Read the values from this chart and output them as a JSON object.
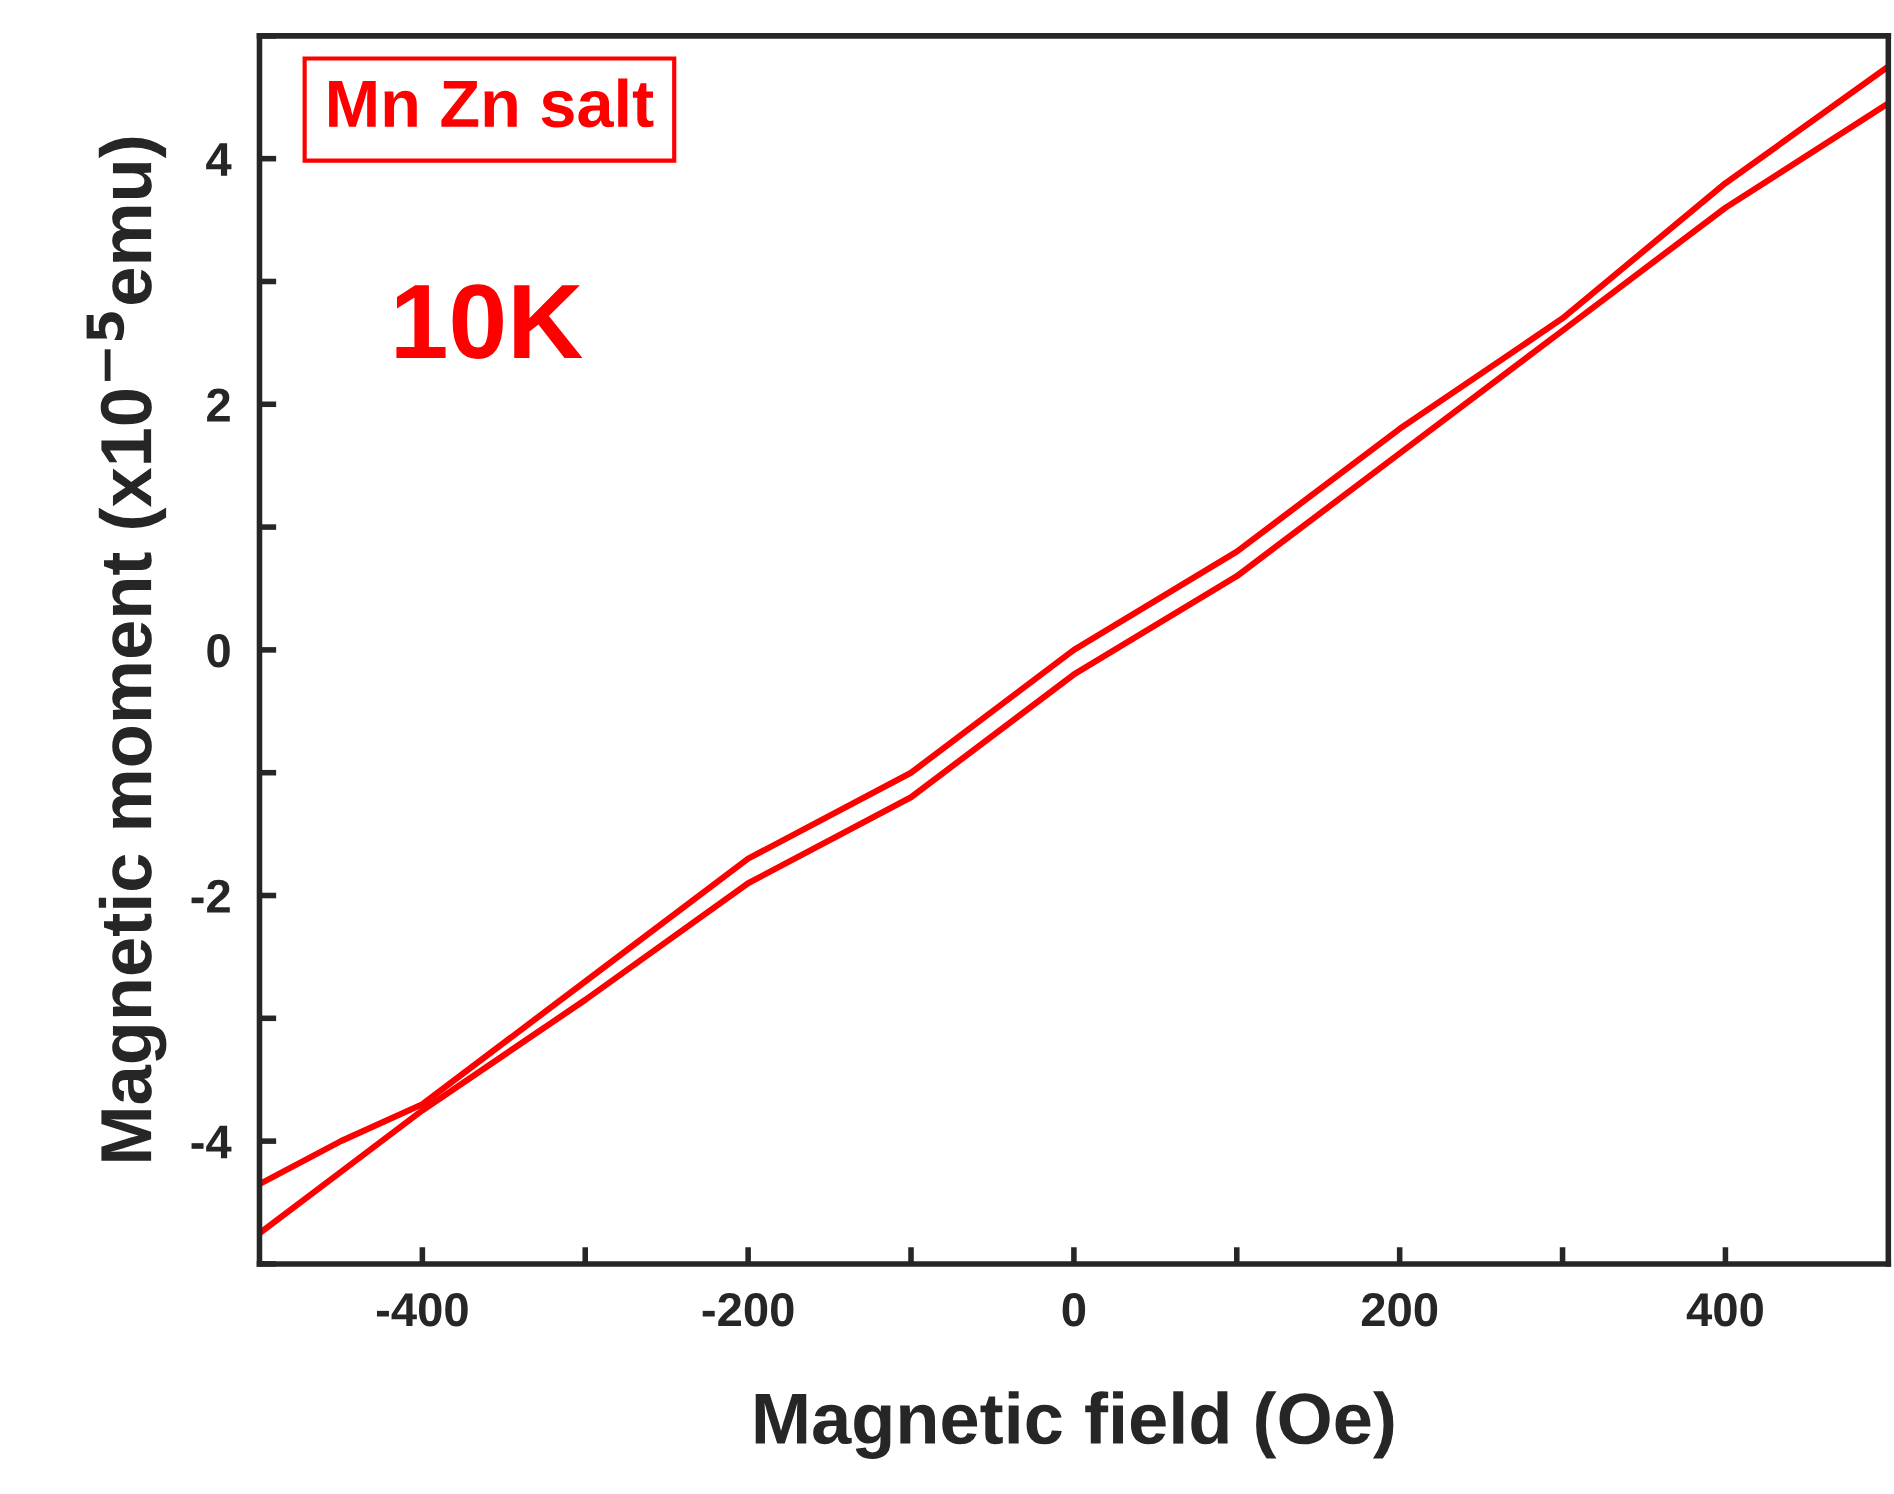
{
  "chart_data": {
    "type": "line",
    "xlabel": "Magnetic field (Oe)",
    "ylabel": "Magnetic moment (x10$^{−5}$emu)",
    "annotations": [
      "Mn Zn salt",
      "10K"
    ],
    "x": [
      -500,
      -450,
      -400,
      -300,
      -200,
      -100,
      0,
      100,
      200,
      300,
      400,
      500
    ],
    "series": [
      {
        "color": "#ff0000",
        "values": [
          -4.35,
          -4.0,
          -3.7,
          -2.7,
          -1.7,
          -1.0,
          0.0,
          0.8,
          1.8,
          2.7,
          3.8,
          4.75
        ]
      },
      {
        "color": "#ff0000",
        "values": [
          -4.75,
          -4.25,
          -3.75,
          -2.85,
          -1.9,
          -1.2,
          -0.2,
          0.6,
          1.6,
          2.6,
          3.6,
          4.45
        ]
      }
    ],
    "xlim": [
      -500,
      500
    ],
    "ylim": [
      -5,
      5
    ],
    "xticks": [
      -400,
      {
        "value": -300,
        "label": null
      },
      -200,
      {
        "value": -100,
        "label": null
      },
      0,
      {
        "value": 100,
        "label": null
      },
      200,
      {
        "value": 300,
        "label": null
      },
      400
    ],
    "yticks": [
      {
        "value": -5,
        "label": null
      },
      -4,
      {
        "value": -3,
        "label": null
      },
      -2,
      {
        "value": -1,
        "label": null
      },
      0,
      {
        "value": 1,
        "label": null
      },
      2,
      {
        "value": 3,
        "label": null
      },
      4,
      {
        "value": 5,
        "label": null
      }
    ],
    "grid": false,
    "marker": "none",
    "line_style": "solid"
  }
}
